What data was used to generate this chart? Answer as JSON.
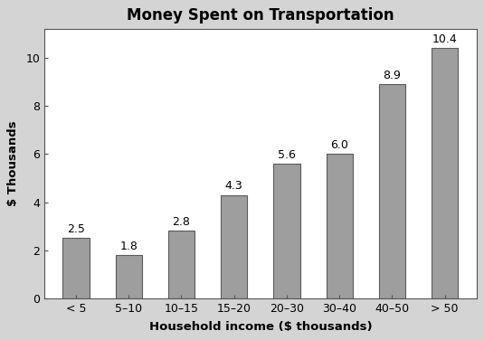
{
  "title": "Money Spent on Transportation",
  "xlabel": "Household income ($ thousands)",
  "ylabel": "$ Thousands",
  "categories": [
    "< 5",
    "5–10",
    "10–15",
    "15–20",
    "20–30",
    "30–40",
    "40–50",
    "> 50"
  ],
  "values": [
    2.5,
    1.8,
    2.8,
    4.3,
    5.6,
    6.0,
    8.9,
    10.4
  ],
  "bar_color": "#9e9e9e",
  "bar_edge_color": "#5a5a5a",
  "ylim": [
    0,
    11.2
  ],
  "yticks": [
    0,
    2,
    4,
    6,
    8,
    10
  ],
  "background_color": "#d4d4d4",
  "plot_bg_color": "#ffffff",
  "title_fontsize": 12,
  "label_fontsize": 9.5,
  "tick_fontsize": 9,
  "annotation_fontsize": 9,
  "bar_width": 0.5,
  "spine_color": "#555555"
}
